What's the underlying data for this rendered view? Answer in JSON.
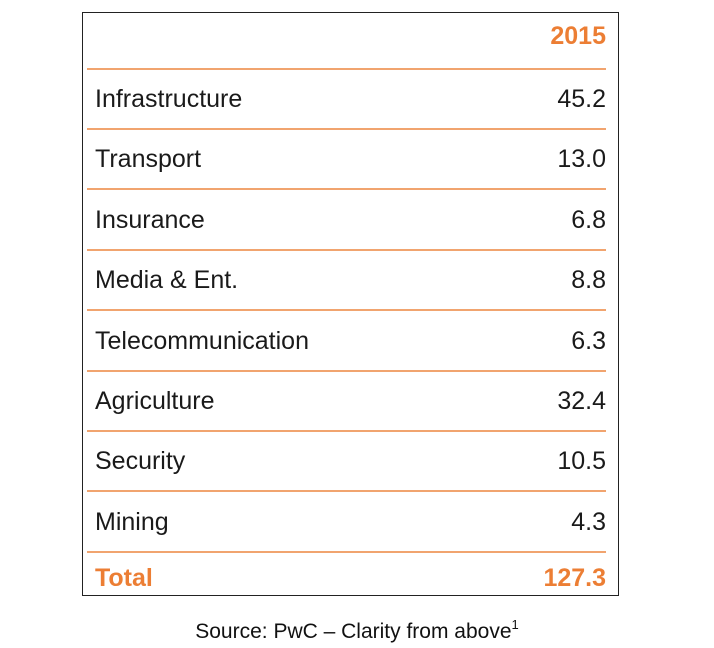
{
  "chart_data": {
    "type": "table",
    "columns": [
      "",
      "2015"
    ],
    "rows": [
      {
        "label": "Infrastructure",
        "value": "45.2"
      },
      {
        "label": "Transport",
        "value": "13.0"
      },
      {
        "label": "Insurance",
        "value": "6.8"
      },
      {
        "label": "Media & Ent.",
        "value": "8.8"
      },
      {
        "label": "Telecommunication",
        "value": "6.3"
      },
      {
        "label": "Agriculture",
        "value": "32.4"
      },
      {
        "label": "Security",
        "value": "10.5"
      },
      {
        "label": "Mining",
        "value": "4.3"
      }
    ],
    "total": {
      "label": "Total",
      "value": "127.3"
    },
    "accent_color": "#ec7e34",
    "rule_color": "#f1a46f"
  },
  "source": {
    "text": "Source: PwC – Clarity from above",
    "footnote_marker": "1"
  }
}
